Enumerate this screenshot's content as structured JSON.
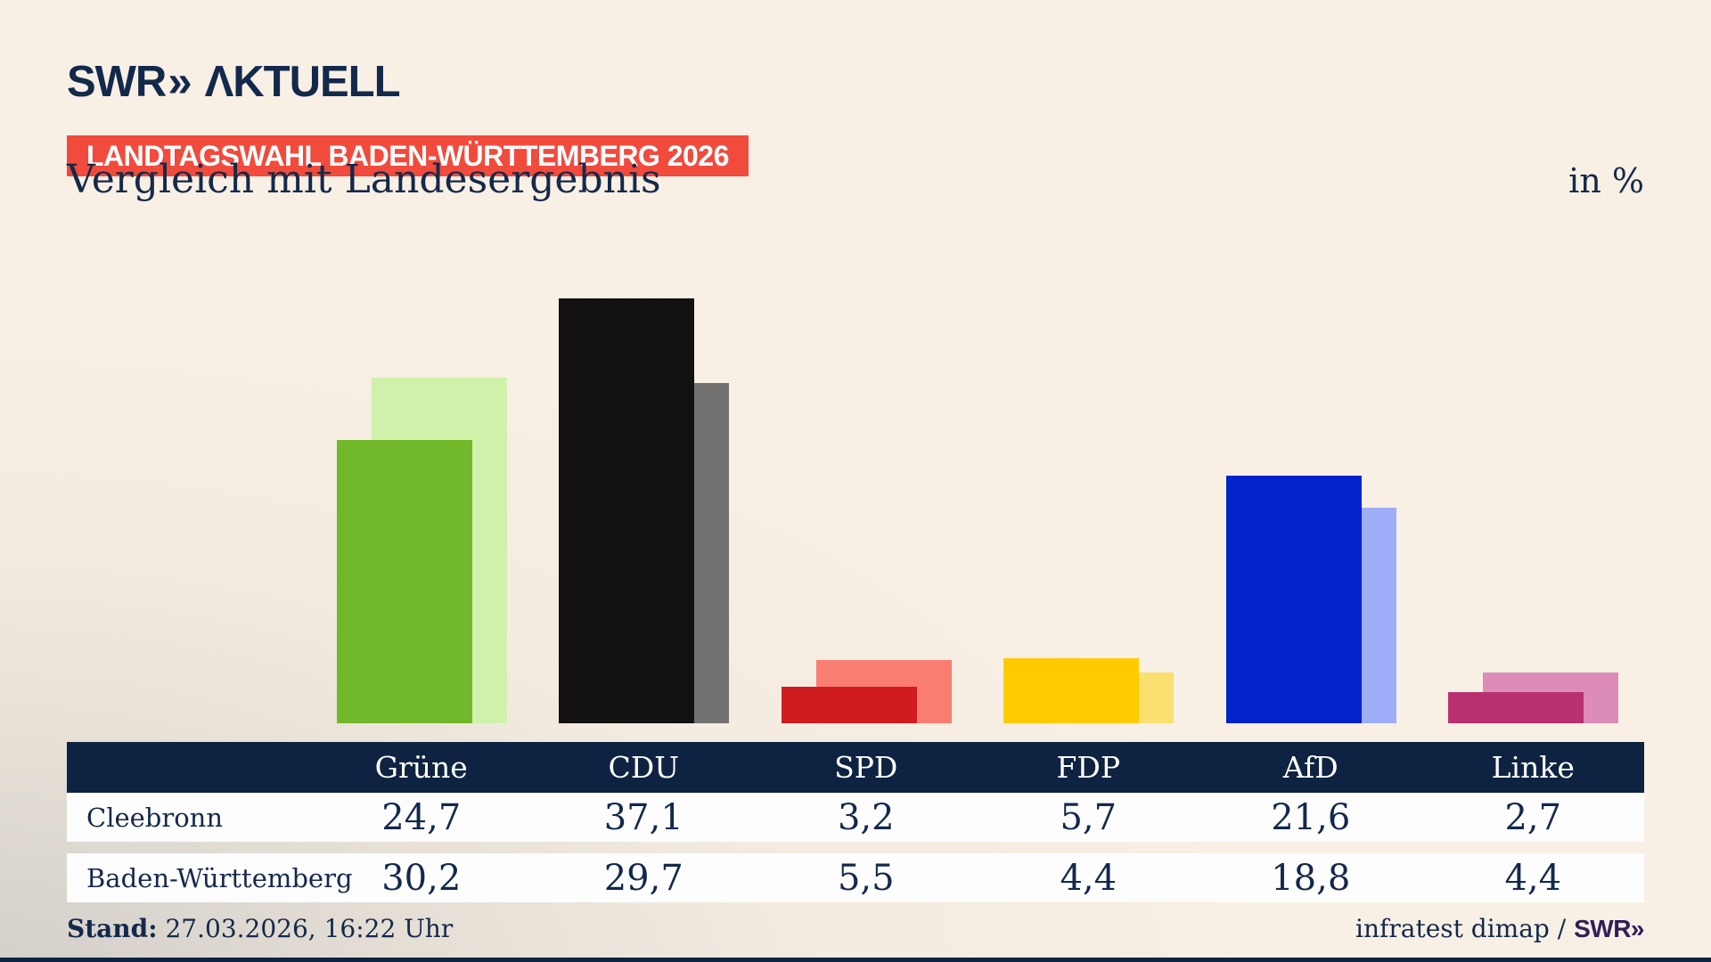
{
  "header": {
    "logo": {
      "swr": "SWR",
      "chevrons": "»",
      "aktuell": "ΛKTUELL"
    },
    "banner": "LANDTAGSWAHL BADEN-WÜRTTEMBERG 2026",
    "title": "Vergleich mit Landesergebnis",
    "unit_label": "in %"
  },
  "chart_data": {
    "type": "bar",
    "categories": [
      "Grüne",
      "CDU",
      "SPD",
      "FDP",
      "AfD",
      "Linke"
    ],
    "series": [
      {
        "name": "Cleebronn",
        "values": [
          24.7,
          37.1,
          3.2,
          5.7,
          21.6,
          2.7
        ]
      },
      {
        "name": "Baden-Württemberg",
        "values": [
          30.2,
          29.7,
          5.5,
          4.4,
          18.8,
          4.4
        ]
      }
    ],
    "series_colors": {
      "Cleebronn": [
        "#71b82a",
        "#131111",
        "#d01c1e",
        "#ffcb00",
        "#0324cd",
        "#b93071"
      ],
      "Baden-Württemberg": [
        "#d0f1aa",
        "#747271",
        "#fa7d72",
        "#fbdf70",
        "#9dadf8",
        "#dc8cb6"
      ]
    },
    "unit": "%",
    "ylim": [
      0,
      40
    ],
    "grid": false,
    "legend_position": "table-below",
    "value_format": "decimal-comma"
  },
  "footer": {
    "stand_label": "Stand:",
    "stand_value": " 27.03.2026, 16:22 Uhr",
    "source_text": "infratest dimap / ",
    "source_logo": {
      "swr": "SWR",
      "chevrons": "»"
    }
  },
  "colors": {
    "background_cream": "#f7efe4",
    "background_gray": "#d0cdc8",
    "navy": "#13294b",
    "table_header_bg": "#0e2341",
    "row_bg": "#fdfdfd",
    "banner_bg": "#f04b3d",
    "banner_text": "#ffffff",
    "footer_logo": "#2f2058"
  }
}
